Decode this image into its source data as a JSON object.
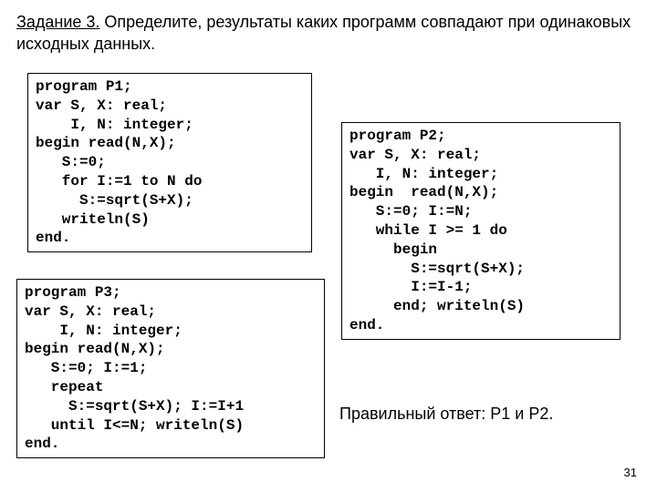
{
  "header": {
    "task_label": "Задание 3.",
    "text": " Определите, результаты каких программ совпадают при одинаковых исходных данных."
  },
  "programs": {
    "p1": "program P1;\nvar S, X: real;\n    I, N: integer;\nbegin read(N,X);\n   S:=0;\n   for I:=1 to N do\n     S:=sqrt(S+X);\n   writeln(S)\nend.",
    "p3": "program P3;\nvar S, X: real;\n    I, N: integer;\nbegin read(N,X);\n   S:=0; I:=1;\n   repeat\n     S:=sqrt(S+X); I:=I+1\n   until I<=N; writeln(S)\nend.",
    "p2": "program P2;\nvar S, X: real;\n   I, N: integer;\nbegin  read(N,X);\n   S:=0; I:=N;\n   while I >= 1 do\n     begin\n       S:=sqrt(S+X);\n       I:=I-1;\n     end; writeln(S)\nend."
  },
  "answer": "Правильный ответ: P1 и P2.",
  "page_number": "31"
}
